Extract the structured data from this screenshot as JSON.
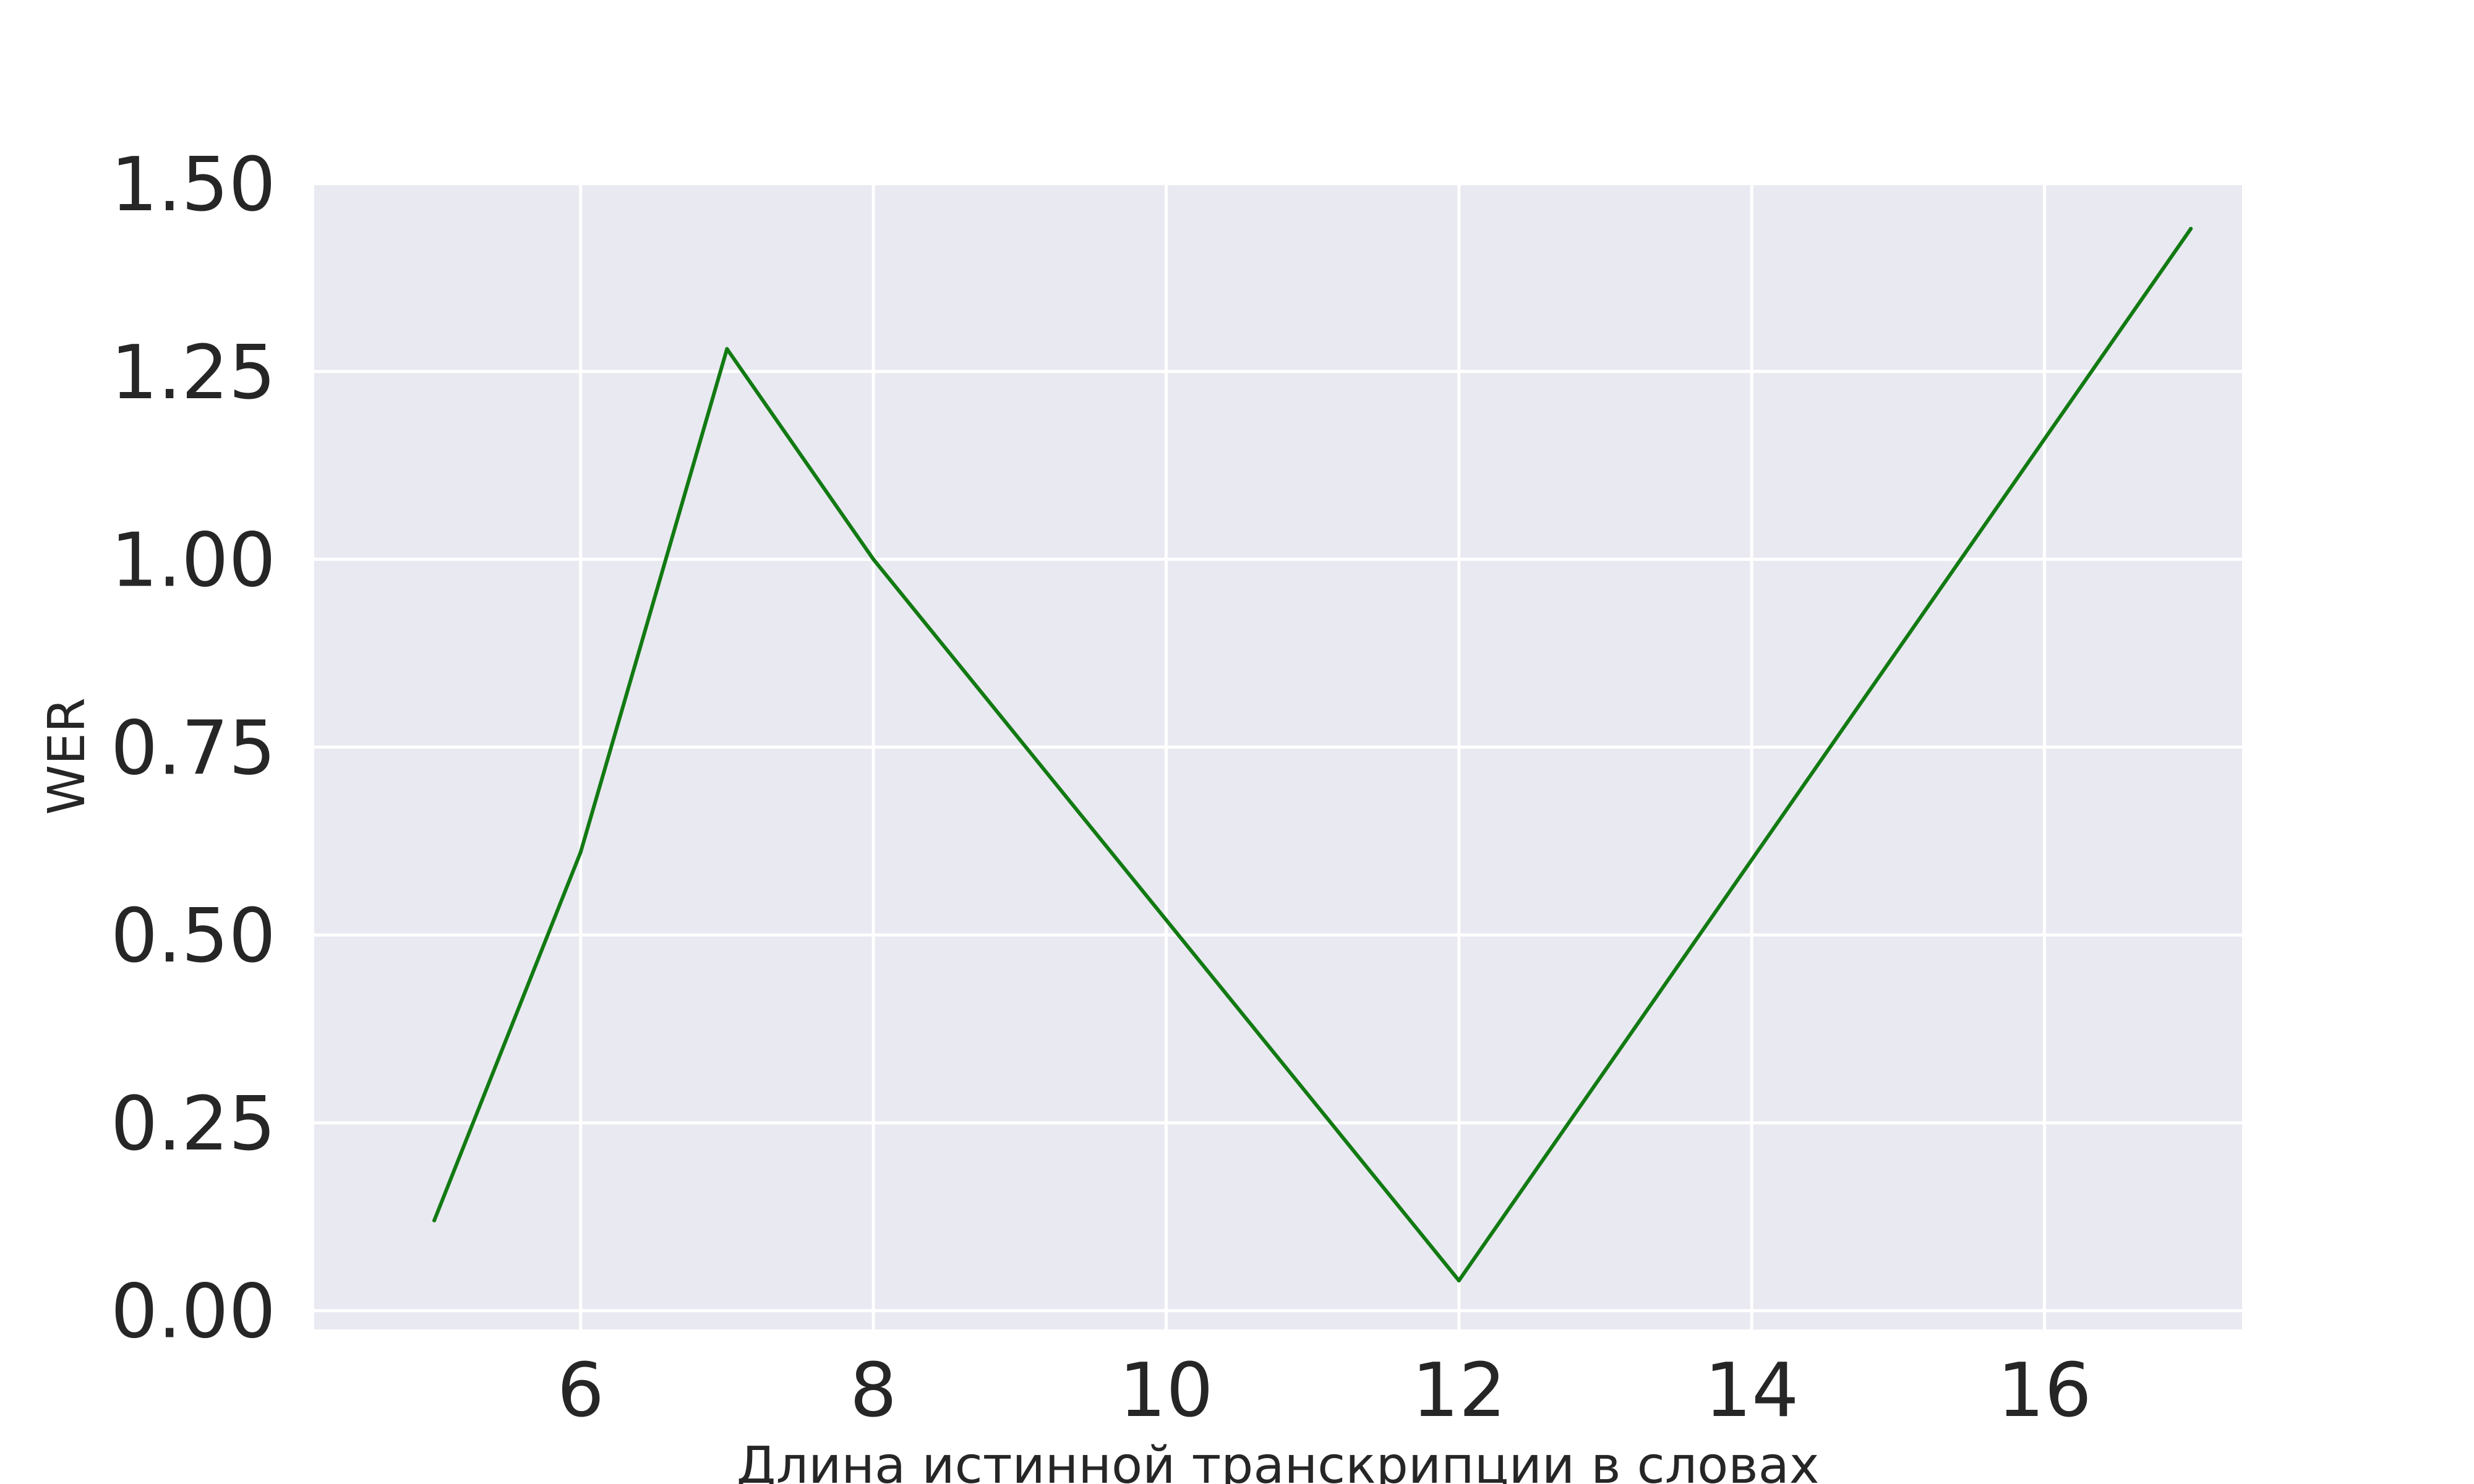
{
  "chart_data": {
    "type": "line",
    "title": "",
    "xlabel": "Длина истинной транскрипции в словах",
    "ylabel": "WER",
    "xlim": [
      4.18,
      17.35
    ],
    "ylim": [
      -0.025,
      1.5
    ],
    "grid": true,
    "legend": "none",
    "x_ticks": [
      {
        "value": 6,
        "label": "6"
      },
      {
        "value": 8,
        "label": "8"
      },
      {
        "value": 10,
        "label": "10"
      },
      {
        "value": 12,
        "label": "12"
      },
      {
        "value": 14,
        "label": "14"
      },
      {
        "value": 16,
        "label": "16"
      }
    ],
    "y_ticks": [
      {
        "value": 0.0,
        "label": "0.00"
      },
      {
        "value": 0.25,
        "label": "0.25"
      },
      {
        "value": 0.5,
        "label": "0.50"
      },
      {
        "value": 0.75,
        "label": "0.75"
      },
      {
        "value": 1.0,
        "label": "1.00"
      },
      {
        "value": 1.25,
        "label": "1.25"
      },
      {
        "value": 1.5,
        "label": "1.50"
      }
    ],
    "series": [
      {
        "color": "#127a12",
        "x": [
          5,
          6,
          7,
          8,
          12,
          17
        ],
        "y": [
          0.12,
          0.61,
          1.28,
          1.0,
          0.04,
          1.44
        ]
      }
    ],
    "colors": {
      "plot_background": "#e9e9f1",
      "grid": "#ffffff",
      "text": "#262626"
    }
  }
}
